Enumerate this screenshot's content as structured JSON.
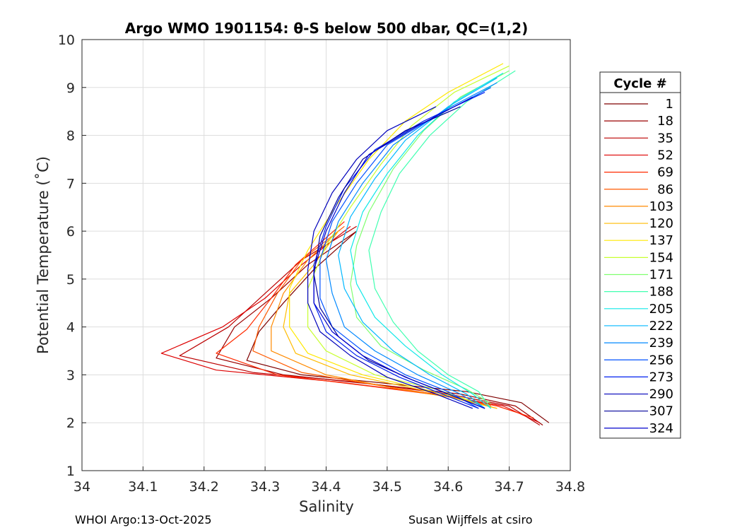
{
  "chart_data": {
    "type": "line",
    "title": "Argo WMO 1901154: θ-S below 500 dbar,  QC=(1,2)",
    "xlabel": "Salinity",
    "ylabel": "Potential Temperature (˚C)",
    "xlim": [
      34.0,
      34.8
    ],
    "ylim": [
      1,
      10
    ],
    "xticks": [
      "34",
      "34.1",
      "34.2",
      "34.3",
      "34.4",
      "34.5",
      "34.6",
      "34.7",
      "34.8"
    ],
    "yticks": [
      "1",
      "2",
      "3",
      "4",
      "5",
      "6",
      "7",
      "8",
      "9",
      "10"
    ],
    "grid": true,
    "legend": {
      "title": "Cycle #",
      "placement": "outside-right",
      "entries": [
        {
          "label": "1",
          "color": "#7f0000"
        },
        {
          "label": "18",
          "color": "#9a0000"
        },
        {
          "label": "35",
          "color": "#bb0000"
        },
        {
          "label": "52",
          "color": "#dd0000"
        },
        {
          "label": "69",
          "color": "#ff2a00"
        },
        {
          "label": "86",
          "color": "#ff5a00"
        },
        {
          "label": "103",
          "color": "#ff8a00"
        },
        {
          "label": "120",
          "color": "#ffbb00"
        },
        {
          "label": "137",
          "color": "#ffe800"
        },
        {
          "label": "154",
          "color": "#c8ff30"
        },
        {
          "label": "171",
          "color": "#7fff70"
        },
        {
          "label": "188",
          "color": "#40ffb0"
        },
        {
          "label": "205",
          "color": "#10e8e8"
        },
        {
          "label": "222",
          "color": "#00b8ff"
        },
        {
          "label": "239",
          "color": "#0088ff"
        },
        {
          "label": "256",
          "color": "#0050ff"
        },
        {
          "label": "273",
          "color": "#0020f0"
        },
        {
          "label": "290",
          "color": "#0000bb"
        },
        {
          "label": "307",
          "color": "#000099"
        },
        {
          "label": "324",
          "color": "#0000cc"
        }
      ]
    },
    "series": [
      {
        "name": "1",
        "color": "#7f0000",
        "points": [
          [
            34.45,
            6.0
          ],
          [
            34.38,
            5.2
          ],
          [
            34.33,
            4.5
          ],
          [
            34.29,
            3.9
          ],
          [
            34.27,
            3.3
          ],
          [
            34.36,
            3.0
          ],
          [
            34.5,
            2.82
          ],
          [
            34.63,
            2.65
          ],
          [
            34.72,
            2.42
          ],
          [
            34.765,
            2.0
          ]
        ]
      },
      {
        "name": "18",
        "color": "#9a0000",
        "points": [
          [
            34.45,
            6.0
          ],
          [
            34.37,
            5.3
          ],
          [
            34.31,
            4.6
          ],
          [
            34.25,
            4.0
          ],
          [
            34.22,
            3.35
          ],
          [
            34.33,
            3.0
          ],
          [
            34.48,
            2.8
          ],
          [
            34.62,
            2.6
          ],
          [
            34.71,
            2.35
          ],
          [
            34.755,
            1.95
          ]
        ]
      },
      {
        "name": "35",
        "color": "#bb0000",
        "points": [
          [
            34.45,
            6.1
          ],
          [
            34.36,
            5.4
          ],
          [
            34.3,
            4.7
          ],
          [
            34.24,
            4.0
          ],
          [
            34.16,
            3.4
          ],
          [
            34.28,
            3.05
          ],
          [
            34.45,
            2.85
          ],
          [
            34.6,
            2.6
          ],
          [
            34.7,
            2.35
          ],
          [
            34.75,
            1.95
          ]
        ]
      },
      {
        "name": "52",
        "color": "#dd0000",
        "points": [
          [
            34.44,
            6.1
          ],
          [
            34.36,
            5.3
          ],
          [
            34.3,
            4.6
          ],
          [
            34.23,
            4.0
          ],
          [
            34.13,
            3.45
          ],
          [
            34.22,
            3.1
          ],
          [
            34.42,
            2.85
          ],
          [
            34.58,
            2.6
          ],
          [
            34.69,
            2.35
          ],
          [
            34.75,
            2.0
          ]
        ]
      },
      {
        "name": "69",
        "color": "#ff2a00",
        "points": [
          [
            34.43,
            6.2
          ],
          [
            34.35,
            5.3
          ],
          [
            34.31,
            4.6
          ],
          [
            34.27,
            3.95
          ],
          [
            34.22,
            3.45
          ],
          [
            34.32,
            3.0
          ],
          [
            34.48,
            2.75
          ],
          [
            34.6,
            2.55
          ],
          [
            34.68,
            2.35
          ],
          [
            34.74,
            2.1
          ]
        ]
      },
      {
        "name": "86",
        "color": "#ff5a00",
        "points": [
          [
            34.43,
            6.1
          ],
          [
            34.36,
            5.4
          ],
          [
            34.32,
            4.7
          ],
          [
            34.29,
            4.0
          ],
          [
            34.28,
            3.5
          ],
          [
            34.36,
            3.05
          ],
          [
            34.5,
            2.75
          ],
          [
            34.6,
            2.55
          ],
          [
            34.67,
            2.35
          ]
        ]
      },
      {
        "name": "103",
        "color": "#ff8a00",
        "points": [
          [
            34.42,
            6.0
          ],
          [
            34.37,
            5.4
          ],
          [
            34.33,
            4.7
          ],
          [
            34.31,
            4.0
          ],
          [
            34.31,
            3.5
          ],
          [
            34.4,
            3.0
          ],
          [
            34.52,
            2.7
          ],
          [
            34.62,
            2.5
          ],
          [
            34.68,
            2.3
          ]
        ]
      },
      {
        "name": "120",
        "color": "#ffbb00",
        "points": [
          [
            34.42,
            6.0
          ],
          [
            34.38,
            5.3
          ],
          [
            34.34,
            4.7
          ],
          [
            34.33,
            4.0
          ],
          [
            34.35,
            3.45
          ],
          [
            34.44,
            3.0
          ],
          [
            34.55,
            2.7
          ],
          [
            34.63,
            2.45
          ],
          [
            34.68,
            2.3
          ]
        ]
      },
      {
        "name": "137",
        "color": "#ffe800",
        "points": [
          [
            34.69,
            9.5
          ],
          [
            34.6,
            8.9
          ],
          [
            34.53,
            8.3
          ],
          [
            34.47,
            7.5
          ],
          [
            34.42,
            6.6
          ],
          [
            34.37,
            5.6
          ],
          [
            34.34,
            4.8
          ],
          [
            34.34,
            4.0
          ],
          [
            34.37,
            3.45
          ],
          [
            34.46,
            3.0
          ],
          [
            34.56,
            2.7
          ],
          [
            34.64,
            2.45
          ]
        ]
      },
      {
        "name": "154",
        "color": "#c8ff30",
        "points": [
          [
            34.7,
            9.45
          ],
          [
            34.61,
            8.9
          ],
          [
            34.54,
            8.2
          ],
          [
            34.49,
            7.4
          ],
          [
            34.44,
            6.5
          ],
          [
            34.4,
            5.7
          ],
          [
            34.37,
            4.8
          ],
          [
            34.37,
            4.0
          ],
          [
            34.4,
            3.5
          ],
          [
            34.48,
            3.0
          ],
          [
            34.58,
            2.7
          ],
          [
            34.65,
            2.4
          ]
        ]
      },
      {
        "name": "171",
        "color": "#7fff70",
        "points": [
          [
            34.7,
            9.35
          ],
          [
            34.62,
            8.8
          ],
          [
            34.56,
            8.1
          ],
          [
            34.51,
            7.3
          ],
          [
            34.47,
            6.4
          ],
          [
            34.45,
            5.7
          ],
          [
            34.44,
            4.9
          ],
          [
            34.45,
            4.2
          ],
          [
            34.49,
            3.6
          ],
          [
            34.56,
            3.1
          ],
          [
            34.63,
            2.7
          ],
          [
            34.67,
            2.4
          ]
        ]
      },
      {
        "name": "188",
        "color": "#40ffb0",
        "points": [
          [
            34.71,
            9.35
          ],
          [
            34.63,
            8.7
          ],
          [
            34.57,
            8.0
          ],
          [
            34.52,
            7.2
          ],
          [
            34.49,
            6.4
          ],
          [
            34.47,
            5.6
          ],
          [
            34.48,
            4.8
          ],
          [
            34.51,
            4.1
          ],
          [
            34.55,
            3.5
          ],
          [
            34.6,
            3.0
          ],
          [
            34.65,
            2.65
          ],
          [
            34.67,
            2.3
          ]
        ]
      },
      {
        "name": "205",
        "color": "#10e8e8",
        "points": [
          [
            34.69,
            9.3
          ],
          [
            34.61,
            8.7
          ],
          [
            34.55,
            8.0
          ],
          [
            34.5,
            7.2
          ],
          [
            34.46,
            6.4
          ],
          [
            34.44,
            5.6
          ],
          [
            34.45,
            4.9
          ],
          [
            34.48,
            4.2
          ],
          [
            34.53,
            3.6
          ],
          [
            34.59,
            3.0
          ],
          [
            34.64,
            2.6
          ],
          [
            34.67,
            2.3
          ]
        ]
      },
      {
        "name": "222",
        "color": "#00b8ff",
        "points": [
          [
            34.68,
            9.2
          ],
          [
            34.6,
            8.6
          ],
          [
            34.53,
            7.9
          ],
          [
            34.48,
            7.1
          ],
          [
            34.44,
            6.3
          ],
          [
            34.42,
            5.5
          ],
          [
            34.43,
            4.8
          ],
          [
            34.46,
            4.1
          ],
          [
            34.51,
            3.5
          ],
          [
            34.57,
            3.0
          ],
          [
            34.63,
            2.6
          ],
          [
            34.66,
            2.3
          ]
        ]
      },
      {
        "name": "239",
        "color": "#0088ff",
        "points": [
          [
            34.68,
            9.1
          ],
          [
            34.59,
            8.5
          ],
          [
            34.51,
            7.8
          ],
          [
            34.46,
            7.0
          ],
          [
            34.42,
            6.2
          ],
          [
            34.4,
            5.4
          ],
          [
            34.41,
            4.7
          ],
          [
            34.43,
            4.0
          ],
          [
            34.48,
            3.5
          ],
          [
            34.55,
            3.0
          ],
          [
            34.62,
            2.6
          ],
          [
            34.66,
            2.3
          ]
        ]
      },
      {
        "name": "256",
        "color": "#0050ff",
        "points": [
          [
            34.67,
            9.0
          ],
          [
            34.58,
            8.4
          ],
          [
            34.5,
            7.8
          ],
          [
            34.45,
            7.0
          ],
          [
            34.41,
            6.2
          ],
          [
            34.39,
            5.4
          ],
          [
            34.39,
            4.6
          ],
          [
            34.41,
            4.0
          ],
          [
            34.46,
            3.5
          ],
          [
            34.53,
            3.0
          ],
          [
            34.6,
            2.65
          ],
          [
            34.65,
            2.3
          ]
        ]
      },
      {
        "name": "273",
        "color": "#0020f0",
        "points": [
          [
            34.66,
            8.9
          ],
          [
            34.56,
            8.3
          ],
          [
            34.48,
            7.7
          ],
          [
            34.43,
            6.9
          ],
          [
            34.4,
            6.1
          ],
          [
            34.38,
            5.3
          ],
          [
            34.38,
            4.5
          ],
          [
            34.4,
            3.9
          ],
          [
            34.45,
            3.4
          ],
          [
            34.52,
            2.95
          ],
          [
            34.59,
            2.6
          ],
          [
            34.65,
            2.3
          ]
        ]
      },
      {
        "name": "290",
        "color": "#0000bb",
        "points": [
          [
            34.58,
            8.6
          ],
          [
            34.5,
            8.1
          ],
          [
            34.45,
            7.5
          ],
          [
            34.41,
            6.8
          ],
          [
            34.38,
            6.0
          ],
          [
            34.37,
            5.2
          ],
          [
            34.37,
            4.5
          ],
          [
            34.39,
            3.9
          ],
          [
            34.44,
            3.4
          ],
          [
            34.5,
            2.95
          ],
          [
            34.58,
            2.6
          ],
          [
            34.64,
            2.3
          ]
        ]
      },
      {
        "name": "307",
        "color": "#000099",
        "points": [
          [
            34.62,
            8.6
          ],
          [
            34.53,
            8.1
          ],
          [
            34.46,
            7.5
          ],
          [
            34.42,
            6.7
          ],
          [
            34.39,
            5.9
          ],
          [
            34.38,
            5.1
          ],
          [
            34.39,
            4.4
          ],
          [
            34.42,
            3.8
          ],
          [
            34.47,
            3.3
          ],
          [
            34.54,
            2.9
          ],
          [
            34.61,
            2.55
          ],
          [
            34.66,
            2.3
          ]
        ]
      },
      {
        "name": "324",
        "color": "#0000cc",
        "points": [
          [
            34.64,
            8.8
          ],
          [
            34.55,
            8.2
          ],
          [
            34.47,
            7.6
          ],
          [
            34.43,
            6.8
          ],
          [
            34.4,
            6.0
          ],
          [
            34.38,
            5.2
          ],
          [
            34.38,
            4.5
          ],
          [
            34.41,
            3.9
          ],
          [
            34.46,
            3.4
          ],
          [
            34.53,
            2.95
          ],
          [
            34.6,
            2.6
          ],
          [
            34.66,
            2.3
          ]
        ]
      }
    ]
  },
  "footer": {
    "left": "WHOI Argo:13-Oct-2025",
    "right": "Susan Wijffels at csiro"
  }
}
